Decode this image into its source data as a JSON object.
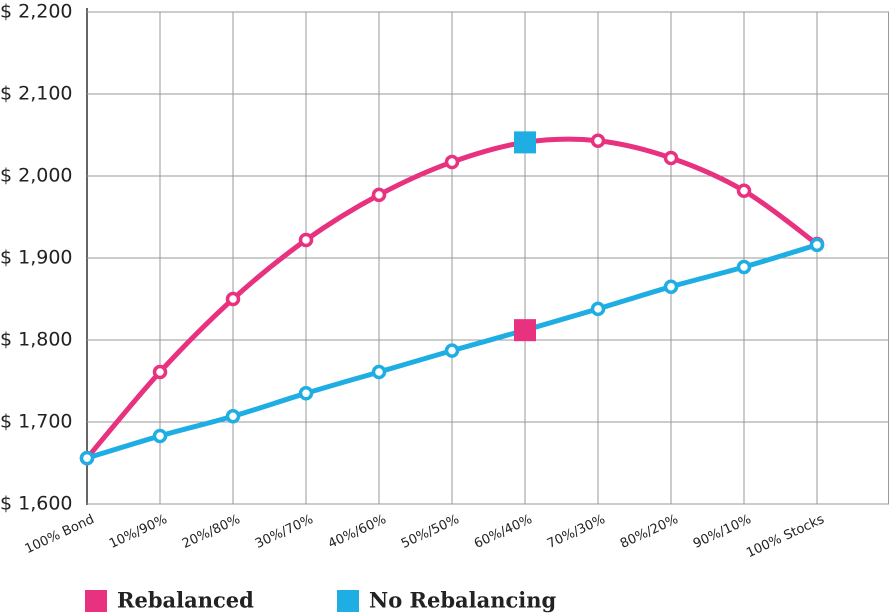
{
  "chart_data": {
    "type": "line",
    "categories": [
      "100% Bond",
      "10%/90%",
      "20%/80%",
      "30%/70%",
      "40%/60%",
      "50%/50%",
      "60%/40%",
      "70%/30%",
      "80%/20%",
      "90%/10%",
      "100% Stocks"
    ],
    "series": [
      {
        "name": "Rebalanced",
        "color": "#e8327f",
        "values": [
          1656,
          1761,
          1850,
          1922,
          1977,
          2017,
          2041,
          2043,
          2022,
          1982,
          1917
        ]
      },
      {
        "name": "No Rebalancing",
        "color": "#1eaee4",
        "values": [
          1656,
          1683,
          1707,
          1735,
          1761,
          1787,
          1812,
          1838,
          1865,
          1889,
          1916
        ]
      }
    ],
    "ylim": [
      1600,
      2200
    ],
    "yticks": [
      {
        "value": 1600,
        "label": "$ 1,600"
      },
      {
        "value": 1700,
        "label": "$ 1,700"
      },
      {
        "value": 1800,
        "label": "$ 1,800"
      },
      {
        "value": 1900,
        "label": "$ 1,900"
      },
      {
        "value": 2000,
        "label": "$ 2,000"
      },
      {
        "value": 2100,
        "label": "$ 2,100"
      },
      {
        "value": 2200,
        "label": "$ 2,200"
      }
    ],
    "grid": true
  }
}
